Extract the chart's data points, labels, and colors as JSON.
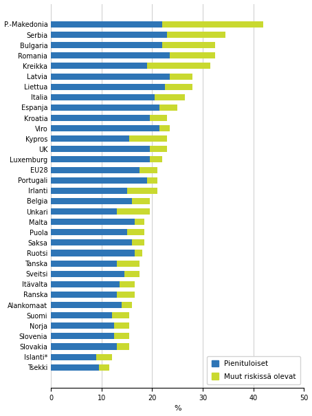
{
  "countries": [
    "P.-Makedonia",
    "Serbia",
    "Bulgaria",
    "Romania",
    "Kreikka",
    "Latvia",
    "Liettua",
    "Italia",
    "Espanja",
    "Kroatia",
    "Viro",
    "Kypros",
    "UK",
    "Luxemburg",
    "EU28",
    "Portugali",
    "Irlanti",
    "Belgia",
    "Unkari",
    "Malta",
    "Puola",
    "Saksa",
    "Ruotsi",
    "Tanska",
    "Sveitsi",
    "Itävalta",
    "Ranska",
    "Alankomaat",
    "Suomi",
    "Norja",
    "Slovenia",
    "Slovakia",
    "Islanti*",
    "Tsekki"
  ],
  "pienituloiset": [
    22.0,
    23.0,
    22.0,
    23.5,
    19.0,
    23.5,
    22.5,
    20.5,
    21.5,
    19.5,
    21.5,
    15.5,
    19.5,
    19.5,
    17.5,
    19.0,
    15.0,
    16.0,
    13.0,
    16.5,
    15.0,
    16.0,
    16.5,
    13.0,
    14.5,
    13.5,
    13.0,
    14.0,
    12.0,
    12.5,
    12.5,
    13.0,
    9.0,
    9.5
  ],
  "muut_riskissa": [
    20.0,
    11.5,
    10.5,
    9.0,
    12.5,
    4.5,
    5.5,
    6.0,
    3.5,
    3.5,
    2.0,
    7.5,
    3.5,
    2.5,
    3.5,
    2.0,
    6.0,
    3.5,
    6.5,
    2.0,
    3.5,
    2.5,
    1.5,
    4.5,
    3.0,
    3.0,
    3.5,
    2.0,
    3.5,
    3.0,
    3.0,
    2.5,
    3.0,
    2.0
  ],
  "color_blue": "#2E75B6",
  "color_green": "#C9D930",
  "bar_height": 0.6,
  "xlim": [
    0,
    50
  ],
  "xticks": [
    0,
    10,
    20,
    30,
    40,
    50
  ],
  "xlabel": "%",
  "legend_labels": [
    "Pienituloiset",
    "Muut riskissä olevat"
  ],
  "grid_color": "#cccccc",
  "figsize": [
    4.54,
    6.05
  ],
  "dpi": 100
}
